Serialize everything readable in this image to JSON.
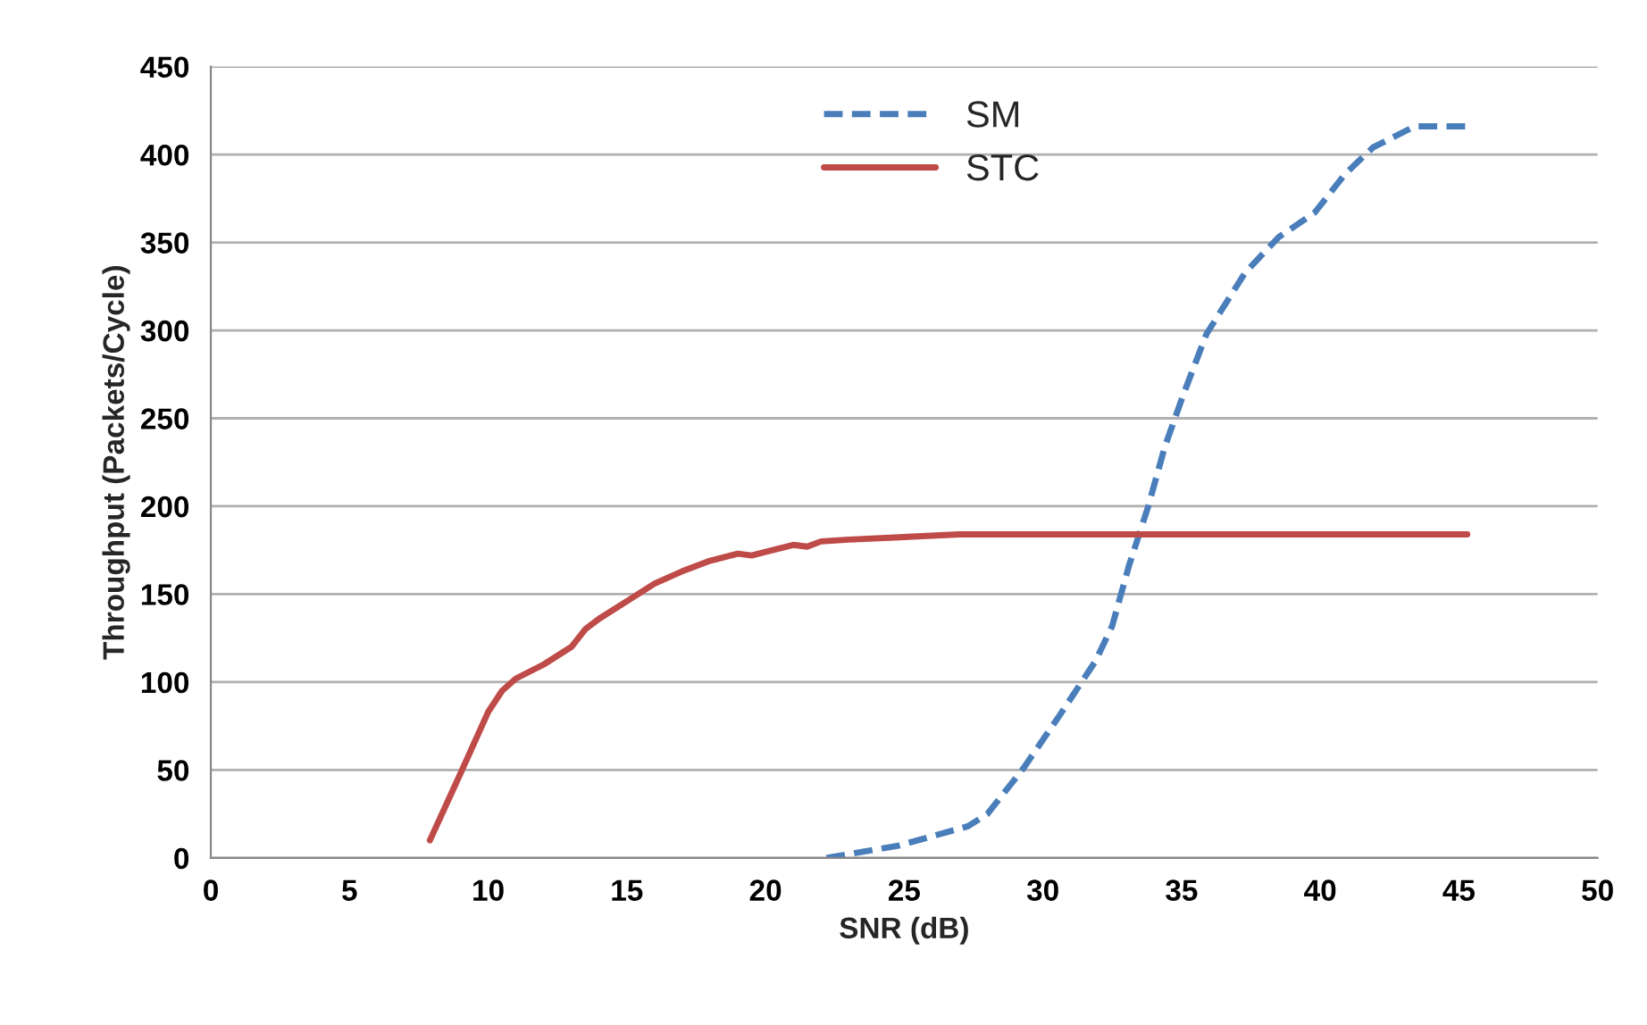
{
  "chart_data": {
    "type": "line",
    "xlabel": "SNR (dB)",
    "ylabel": "Throughput (Packets/Cycle)",
    "xlim": [
      0,
      50
    ],
    "xticks": [
      0,
      5,
      10,
      15,
      20,
      25,
      30,
      35,
      40,
      45,
      50
    ],
    "ylim": [
      0,
      450
    ],
    "yticks": [
      0,
      50,
      100,
      150,
      200,
      250,
      300,
      350,
      400,
      450
    ],
    "grid": "y",
    "legend": "top",
    "marker": "none",
    "series": [
      {
        "name": "SM",
        "color": "#4a7ebb",
        "line_style": "dashed",
        "x": [
          22.2,
          24.8,
          27.3,
          28.0,
          29.3,
          30.6,
          31.9,
          32.5,
          33.1,
          33.8,
          34.4,
          35.1,
          35.9,
          37.3,
          38.5,
          39.8,
          40.9,
          41.9,
          43.4,
          45.3
        ],
        "values": [
          0,
          7,
          18,
          25,
          51,
          81,
          112,
          132,
          166,
          200,
          234,
          265,
          298,
          333,
          353,
          367,
          389,
          404,
          416,
          416
        ]
      },
      {
        "name": "STC",
        "color": "#be4b48",
        "line_style": "solid",
        "x": [
          7.9,
          9,
          10,
          10.5,
          11,
          12,
          13,
          13.5,
          14,
          15,
          16,
          17,
          18,
          19,
          19.5,
          20,
          21,
          21.5,
          22,
          23,
          25,
          27,
          30,
          45.3
        ],
        "values": [
          10,
          48,
          83,
          95,
          102,
          110,
          120,
          130,
          136,
          146,
          156,
          163,
          169,
          173,
          172,
          174,
          178,
          177,
          180,
          181,
          182.5,
          184,
          184,
          184
        ]
      }
    ]
  }
}
